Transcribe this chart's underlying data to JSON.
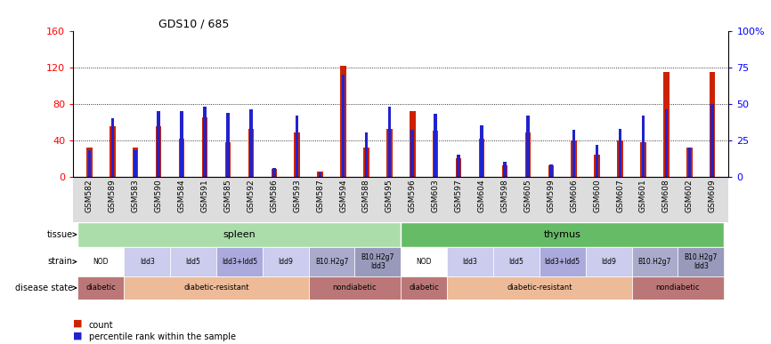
{
  "title": "GDS10 / 685",
  "samples": [
    "GSM582",
    "GSM589",
    "GSM583",
    "GSM590",
    "GSM584",
    "GSM591",
    "GSM585",
    "GSM592",
    "GSM586",
    "GSM593",
    "GSM587",
    "GSM594",
    "GSM588",
    "GSM595",
    "GSM596",
    "GSM603",
    "GSM597",
    "GSM604",
    "GSM598",
    "GSM605",
    "GSM599",
    "GSM606",
    "GSM600",
    "GSM607",
    "GSM601",
    "GSM608",
    "GSM602",
    "GSM609"
  ],
  "counts": [
    32,
    55,
    32,
    55,
    42,
    65,
    38,
    52,
    8,
    48,
    5,
    122,
    32,
    52,
    72,
    50,
    20,
    42,
    12,
    48,
    12,
    40,
    24,
    40,
    38,
    115,
    32,
    115
  ],
  "percentiles_raw": [
    18,
    40,
    18,
    45,
    45,
    48,
    44,
    46,
    6,
    42,
    3,
    70,
    30,
    48,
    32,
    43,
    15,
    35,
    10,
    42,
    8,
    32,
    22,
    33,
    42,
    46,
    20,
    50
  ],
  "left_ylim": [
    0,
    160
  ],
  "right_ylim": [
    0,
    100
  ],
  "left_yticks": [
    0,
    40,
    80,
    120,
    160
  ],
  "right_yticks": [
    0,
    25,
    50,
    75,
    100
  ],
  "right_yticklabels": [
    "0",
    "25",
    "50",
    "75",
    "100%"
  ],
  "bar_color_red": "#cc2200",
  "bar_color_blue": "#2222cc",
  "tissue_regions": [
    {
      "label": "spleen",
      "start": 0,
      "end": 14,
      "color": "#aaddaa"
    },
    {
      "label": "thymus",
      "start": 14,
      "end": 28,
      "color": "#66bb66"
    }
  ],
  "strain_regions": [
    {
      "label": "NOD",
      "start": 0,
      "end": 2,
      "color": "#ffffff"
    },
    {
      "label": "ldd3",
      "start": 2,
      "end": 4,
      "color": "#ccccee"
    },
    {
      "label": "ldd5",
      "start": 4,
      "end": 6,
      "color": "#ccccee"
    },
    {
      "label": "ldd3+ldd5",
      "start": 6,
      "end": 8,
      "color": "#aaaadd"
    },
    {
      "label": "ldd9",
      "start": 8,
      "end": 10,
      "color": "#ccccee"
    },
    {
      "label": "B10.H2g7",
      "start": 10,
      "end": 12,
      "color": "#aaaacc"
    },
    {
      "label": "B10.H2g7\nldd3",
      "start": 12,
      "end": 14,
      "color": "#9999bb"
    },
    {
      "label": "NOD",
      "start": 14,
      "end": 16,
      "color": "#ffffff"
    },
    {
      "label": "ldd3",
      "start": 16,
      "end": 18,
      "color": "#ccccee"
    },
    {
      "label": "ldd5",
      "start": 18,
      "end": 20,
      "color": "#ccccee"
    },
    {
      "label": "ldd3+ldd5",
      "start": 20,
      "end": 22,
      "color": "#aaaadd"
    },
    {
      "label": "ldd9",
      "start": 22,
      "end": 24,
      "color": "#ccccee"
    },
    {
      "label": "B10.H2g7",
      "start": 24,
      "end": 26,
      "color": "#aaaacc"
    },
    {
      "label": "B10.H2g7\nldd3",
      "start": 26,
      "end": 28,
      "color": "#9999bb"
    }
  ],
  "disease_regions": [
    {
      "label": "diabetic",
      "start": 0,
      "end": 2,
      "color": "#bb7777"
    },
    {
      "label": "diabetic-resistant",
      "start": 2,
      "end": 10,
      "color": "#eebb99"
    },
    {
      "label": "nondiabetic",
      "start": 10,
      "end": 14,
      "color": "#bb7777"
    },
    {
      "label": "diabetic",
      "start": 14,
      "end": 16,
      "color": "#bb7777"
    },
    {
      "label": "diabetic-resistant",
      "start": 16,
      "end": 24,
      "color": "#eebb99"
    },
    {
      "label": "nondiabetic",
      "start": 24,
      "end": 28,
      "color": "#bb7777"
    }
  ],
  "legend_items": [
    "count",
    "percentile rank within the sample"
  ]
}
